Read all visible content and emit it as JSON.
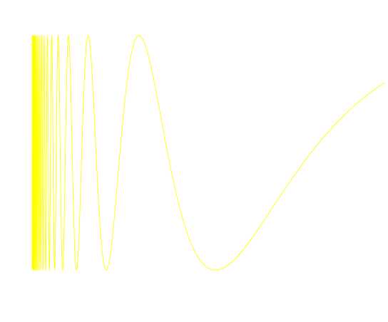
{
  "chart_data": {
    "type": "line",
    "function": "sin(1/x)",
    "x_range": [
      0.0085,
      0.4
    ],
    "y_range": [
      -1,
      1
    ],
    "title": "",
    "xlabel": "",
    "ylabel": "",
    "axes_visible": false,
    "grid": false,
    "series": [
      {
        "line_color": "#ffff00"
      }
    ]
  }
}
